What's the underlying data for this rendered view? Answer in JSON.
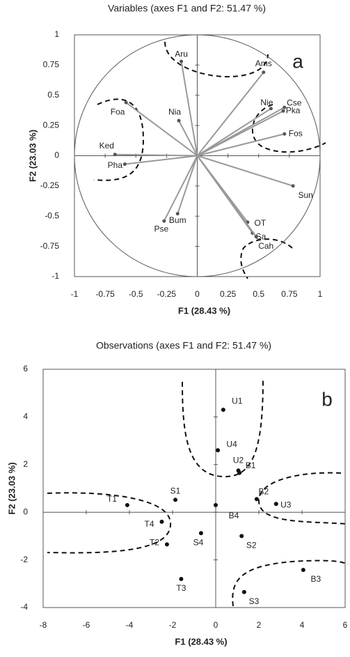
{
  "chart_data": [
    {
      "type": "biplot",
      "title": "Variables (axes F1 and F2: 51.47 %)",
      "annotation": "a",
      "x_label": "F1 (28.43 %)",
      "y_label": "F2 (23.03 %)",
      "point_labels": [
        "Aru",
        "Ams",
        "Nie",
        "Cse",
        "Pka",
        "Fos",
        "Foa",
        "Nia",
        "Ked",
        "Pha",
        "Sun",
        "Bum",
        "Pse",
        "OT",
        "Sa",
        "Cah"
      ],
      "x": [
        -0.13,
        0.54,
        0.6,
        0.71,
        0.7,
        0.71,
        -0.58,
        -0.15,
        -0.67,
        -0.59,
        0.78,
        -0.16,
        -0.27,
        0.41,
        0.45,
        0.48
      ],
      "values": [
        0.78,
        0.69,
        0.39,
        0.4,
        0.37,
        0.18,
        0.44,
        0.29,
        0.01,
        -0.07,
        -0.25,
        -0.48,
        -0.54,
        -0.55,
        -0.64,
        -0.67
      ],
      "color": "#999999",
      "xlim": [
        -1,
        1
      ],
      "xticks": [
        -1,
        -0.75,
        -0.5,
        -0.25,
        0,
        0.25,
        0.5,
        0.75,
        1
      ],
      "ylim": [
        -1,
        1
      ],
      "yticks": [
        -1,
        -0.75,
        -0.5,
        -0.25,
        0,
        0.25,
        0.5,
        0.75,
        1
      ]
    },
    {
      "type": "scatter",
      "title": "Observations (axes F1 and F2: 51.47 %)",
      "annotation": "b",
      "x_label": "F1 (28.43 %)",
      "y_label": "F2 (23.03 %)",
      "point_labels": [
        "U1",
        "U4",
        "U2",
        "B1",
        "B2",
        "U3",
        "B4",
        "S1",
        "T1",
        "T4",
        "T2",
        "S4",
        "S2",
        "B3",
        "T3",
        "S3"
      ],
      "x": [
        0.35,
        0.1,
        1.05,
        1.1,
        1.9,
        2.8,
        0.0,
        -1.87,
        -4.1,
        -2.5,
        -2.26,
        -0.68,
        1.2,
        4.06,
        -1.6,
        1.32
      ],
      "values": [
        4.3,
        2.6,
        1.75,
        1.65,
        0.55,
        0.35,
        0.3,
        0.52,
        0.3,
        -0.4,
        -1.35,
        -0.88,
        -1.0,
        -2.42,
        -2.8,
        -3.35
      ],
      "color": "#111111",
      "xlim": [
        -8,
        6
      ],
      "xticks": [
        -8,
        -6,
        -4,
        -2,
        0,
        2,
        4,
        6
      ],
      "ylim": [
        -4,
        6
      ],
      "yticks": [
        -4,
        -2,
        0,
        2,
        4,
        6
      ]
    }
  ]
}
